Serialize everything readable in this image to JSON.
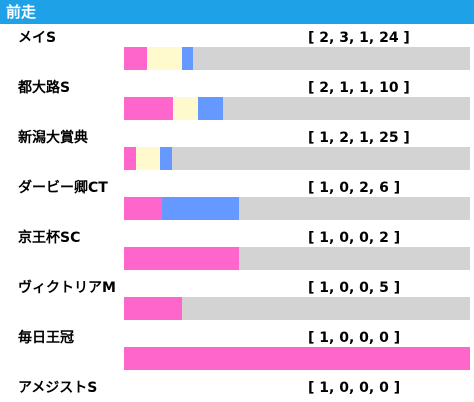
{
  "header": {
    "title": "前走"
  },
  "legend_colors": {
    "first": "#ff66cc",
    "second": "#fffacd",
    "third": "#6699ff",
    "other": "#d3d3d3"
  },
  "chart_data": {
    "type": "bar",
    "stacked": true,
    "orientation": "horizontal",
    "series": [
      {
        "key": "first",
        "color": "#ff66cc"
      },
      {
        "key": "second",
        "color": "#fffacd"
      },
      {
        "key": "third",
        "color": "#6699ff"
      },
      {
        "key": "other",
        "color": "#d3d3d3"
      }
    ],
    "rows": [
      {
        "name": "メイS",
        "record": [
          2,
          3,
          1,
          24
        ],
        "record_text": "[ 2, 3, 1, 24 ]"
      },
      {
        "name": "都大路S",
        "record": [
          2,
          1,
          1,
          10
        ],
        "record_text": "[ 2, 1, 1, 10 ]"
      },
      {
        "name": "新潟大賞典",
        "record": [
          1,
          2,
          1,
          25
        ],
        "record_text": "[ 1, 2, 1, 25 ]"
      },
      {
        "name": "ダービー卿CT",
        "record": [
          1,
          0,
          2,
          6
        ],
        "record_text": "[ 1, 0, 2, 6 ]"
      },
      {
        "name": "京王杯SC",
        "record": [
          1,
          0,
          0,
          2
        ],
        "record_text": "[ 1, 0, 0, 2 ]"
      },
      {
        "name": "ヴィクトリアM",
        "record": [
          1,
          0,
          0,
          5
        ],
        "record_text": "[ 1, 0, 0, 5 ]"
      },
      {
        "name": "毎日王冠",
        "record": [
          1,
          0,
          0,
          0
        ],
        "record_text": "[ 1, 0, 0, 0 ]"
      },
      {
        "name": "アメジストS",
        "record": [
          1,
          0,
          0,
          0
        ],
        "record_text": "[ 1, 0, 0, 0 ]"
      }
    ]
  }
}
